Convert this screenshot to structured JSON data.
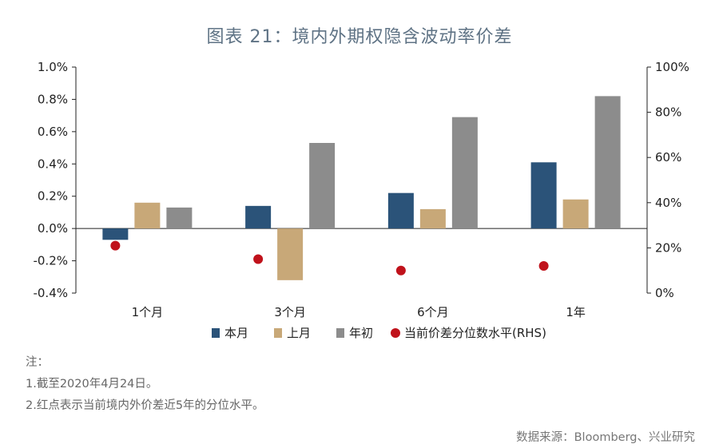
{
  "title": "图表 21：境内外期权隐含波动率价差",
  "notes": {
    "head": "注：",
    "line1": "1.截至2020年4月24日。",
    "line2": "2.红点表示当前境内外价差近5年的分位水平。"
  },
  "source": "数据来源：Bloomberg、兴业研究",
  "chart_data": {
    "type": "bar",
    "categories": [
      "1个月",
      "3个月",
      "6个月",
      "1年"
    ],
    "series": [
      {
        "name": "本月",
        "values": [
          -0.07,
          0.14,
          0.22,
          0.41
        ],
        "color": "#2b5379",
        "axis": "left"
      },
      {
        "name": "上月",
        "values": [
          0.16,
          -0.32,
          0.12,
          0.18
        ],
        "color": "#c8a878",
        "axis": "left"
      },
      {
        "name": "年初",
        "values": [
          0.13,
          0.53,
          0.69,
          0.82
        ],
        "color": "#8c8c8c",
        "axis": "left"
      },
      {
        "name": "当前价差分位数水平(RHS)",
        "type": "scatter",
        "values": [
          21,
          15,
          10,
          12
        ],
        "color": "#c0121b",
        "axis": "right"
      }
    ],
    "y_left": {
      "min": -0.4,
      "max": 1.0,
      "ticks": [
        "1.0%",
        "0.8%",
        "0.6%",
        "0.4%",
        "0.2%",
        "0.0%",
        "-0.2%",
        "-0.4%"
      ]
    },
    "y_right": {
      "min": 0,
      "max": 100,
      "ticks": [
        "100%",
        "80%",
        "60%",
        "40%",
        "20%",
        "0%"
      ]
    },
    "legend_position": "bottom",
    "grid": false
  }
}
